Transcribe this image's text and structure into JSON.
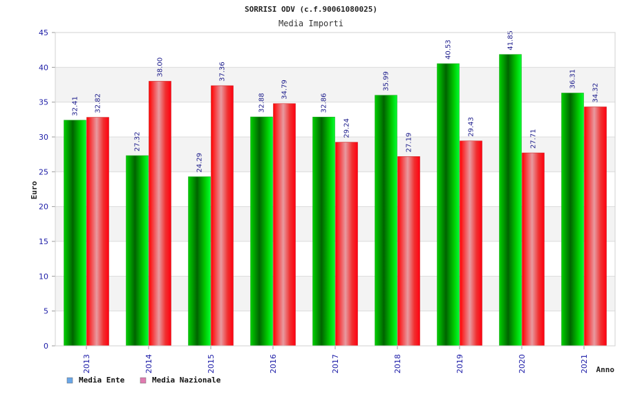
{
  "chart_data": {
    "type": "bar",
    "title": "SORRISI ODV (c.f.90061080025)",
    "subtitle": "Media Importi",
    "xlabel": "Anno",
    "ylabel": "Euro",
    "ylim": [
      0,
      45
    ],
    "yticks": [
      "0",
      "5",
      "10",
      "15",
      "20",
      "25",
      "30",
      "35",
      "40",
      "45"
    ],
    "categories": [
      "2013",
      "2014",
      "2015",
      "2016",
      "2017",
      "2018",
      "2019",
      "2020",
      "2021"
    ],
    "series": [
      {
        "name": "Media Ente",
        "values": [
          32.41,
          27.32,
          24.29,
          32.88,
          32.86,
          35.99,
          40.53,
          41.85,
          36.31
        ],
        "labels": [
          "32.41",
          "27.32",
          "24.29",
          "32.88",
          "32.86",
          "35.99",
          "40.53",
          "41.85",
          "36.31"
        ],
        "color": "#00b000",
        "legend_color": "#6aa7e8"
      },
      {
        "name": "Media Nazionale",
        "values": [
          32.82,
          38.0,
          37.36,
          34.79,
          29.24,
          27.19,
          29.43,
          27.71,
          34.32
        ],
        "labels": [
          "32.82",
          "38.00",
          "37.36",
          "34.79",
          "29.24",
          "27.19",
          "29.43",
          "27.71",
          "34.32"
        ],
        "color": "#f00010",
        "legend_color": "#e07bb0"
      }
    ],
    "legend_position": "bottom-left",
    "grid": true
  }
}
